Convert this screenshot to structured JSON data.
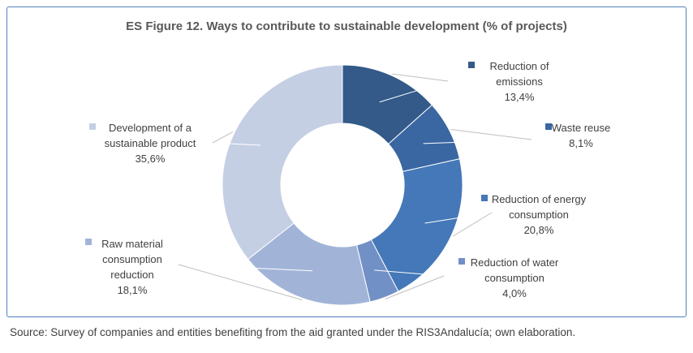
{
  "chart_data": {
    "type": "pie",
    "title": "ES Figure 12. Ways to contribute to sustainable development (% of projects)",
    "donut": true,
    "legend": "inline labels with color markers",
    "categories": [
      "Reduction of emissions",
      "Waste reuse",
      "Reduction of energy consumption",
      "Reduction of water consumption",
      "Raw material consumption reduction",
      "Development of a sustainable product"
    ],
    "values": [
      13.4,
      8.1,
      20.8,
      4.0,
      18.1,
      35.6
    ],
    "value_labels": [
      "13,4%",
      "8,1%",
      "20,8%",
      "4,0%",
      "18,1%",
      "35,6%"
    ],
    "label_lines": [
      [
        "Reduction of",
        "emissions"
      ],
      [
        "Waste reuse"
      ],
      [
        "Reduction of energy",
        "consumption"
      ],
      [
        "Reduction of water",
        "consumption"
      ],
      [
        "Raw material",
        "consumption",
        "reduction"
      ],
      [
        "Development of a",
        "sustainable product"
      ]
    ],
    "colors": [
      "#335a89",
      "#3a67a2",
      "#4478b8",
      "#7190c6",
      "#a1b4d8",
      "#c4cfe4"
    ]
  },
  "source": "Source: Survey of companies and entities benefiting from the aid granted under the RIS3Andalucía; own elaboration."
}
